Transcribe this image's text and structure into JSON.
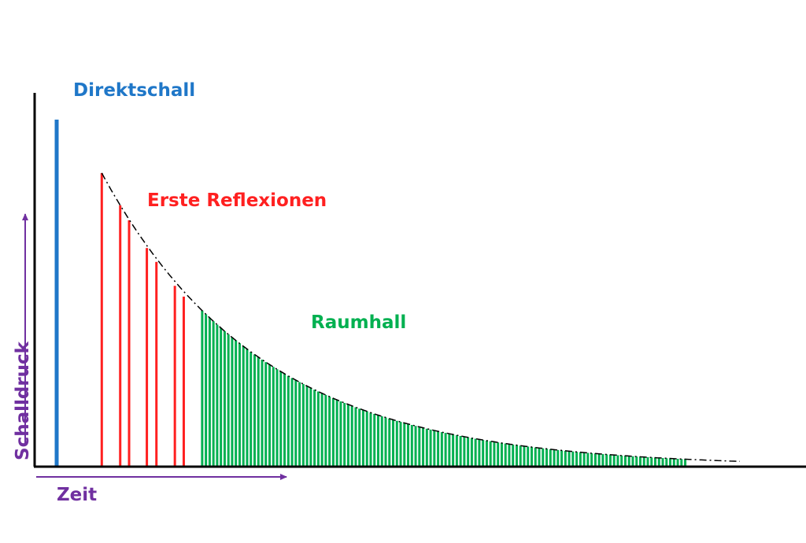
{
  "labels": {
    "direct": "Direktschall",
    "early": "Erste Reflexionen",
    "late": "Raumhall",
    "x_axis": "Zeit",
    "y_axis": "Schalldruck"
  },
  "colors": {
    "direct": "#1f77c8",
    "early": "#ff2020",
    "late": "#00b050",
    "axis_label": "#7030a0",
    "axis": "#000000",
    "envelope": "#000000"
  },
  "series": {
    "direct": [
      {
        "t": 0,
        "level": 1.0
      }
    ],
    "early_reflections": [
      {
        "t": 0.066,
        "level": 0.846
      },
      {
        "t": 0.093,
        "level": 0.753
      },
      {
        "t": 0.106,
        "level": 0.71
      },
      {
        "t": 0.132,
        "level": 0.63
      },
      {
        "t": 0.146,
        "level": 0.59
      },
      {
        "t": 0.173,
        "level": 0.521
      },
      {
        "t": 0.186,
        "level": 0.49
      }
    ],
    "late_reverb": {
      "t_start": 0.213,
      "t_end": 0.92,
      "count": 130,
      "decay_k": 4.3
    }
  }
}
